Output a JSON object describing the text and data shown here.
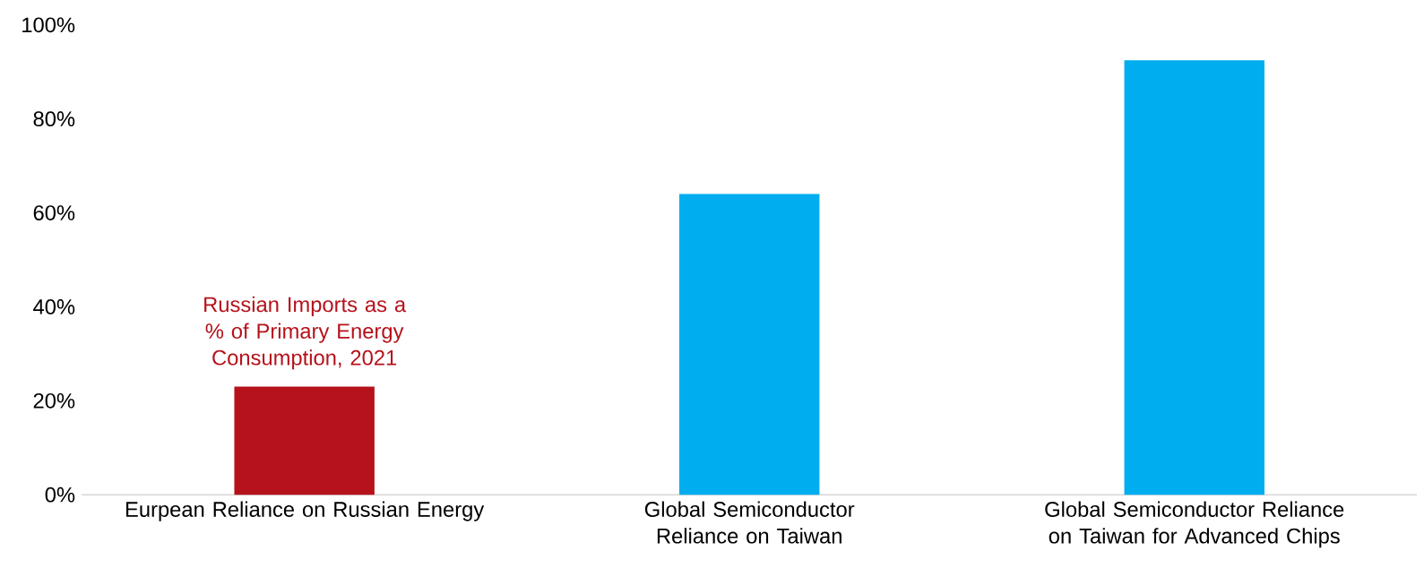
{
  "chart_data": {
    "type": "bar",
    "categories": [
      "Eurpean Reliance on Russian Energy",
      "Global Semiconductor Reliance on Taiwan",
      "Global Semiconductor Reliance on Taiwan for Advanced Chips"
    ],
    "values": [
      23,
      64,
      92.5
    ],
    "colors": [
      "#b5121b",
      "#00aeef",
      "#00aeef"
    ],
    "ylim": [
      0,
      100
    ],
    "yticks": [
      {
        "value": 0,
        "label": "0%"
      },
      {
        "value": 20,
        "label": "20%"
      },
      {
        "value": 40,
        "label": "40%"
      },
      {
        "value": 60,
        "label": "60%"
      },
      {
        "value": 80,
        "label": "80%"
      },
      {
        "value": 100,
        "label": "100%"
      }
    ],
    "annotations": [
      {
        "text": "Russian Imports as a % of Primary Energy Consumption, 2021",
        "x": "Eurpean Reliance on Russian Energy",
        "y": 23
      }
    ]
  }
}
